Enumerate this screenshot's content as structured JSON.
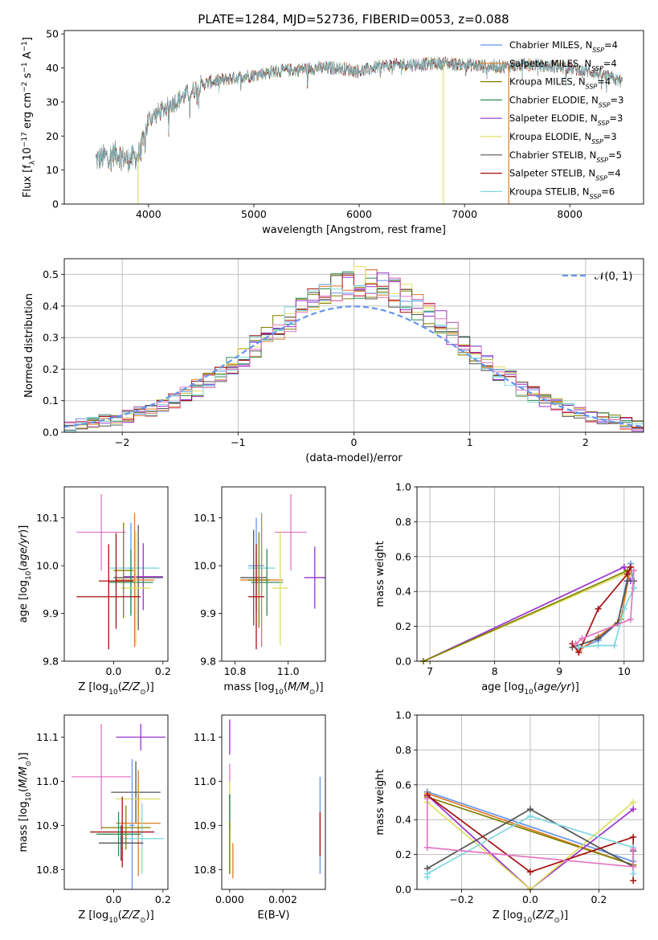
{
  "figure": {
    "title": "PLATE=1284, MJD=52736, FIBERID=0053, z=0.088"
  },
  "chart_data": [
    {
      "id": "spectrum",
      "type": "line",
      "title": "PLATE=1284, MJD=52736, FIBERID=0053, z=0.088",
      "xlabel": "wavelength [Angstrom, rest frame]",
      "ylabel": "Flux [f_λ 10^-17 erg cm^-2 s^-1 A^-1]",
      "xlim": [
        3200,
        8700
      ],
      "ylim": [
        0,
        51
      ],
      "xticks": [
        4000,
        5000,
        6000,
        7000,
        8000
      ],
      "yticks": [
        0,
        10,
        20,
        30,
        40,
        50
      ],
      "grid": false,
      "legend_position": "top-right",
      "continuum": {
        "x": [
          3500,
          3600,
          3700,
          3800,
          3900,
          3950,
          4000,
          4100,
          4200,
          4300,
          4400,
          4500,
          4600,
          4800,
          5000,
          5200,
          5400,
          5600,
          5800,
          6000,
          6200,
          6400,
          6600,
          6800,
          7000,
          7200,
          7400,
          7600,
          7800,
          8000,
          8200,
          8400,
          8500
        ],
        "y": [
          13,
          14,
          15,
          13,
          14,
          18,
          25,
          27,
          29,
          31,
          33,
          35,
          36,
          37,
          38,
          39,
          39.5,
          40,
          40,
          39,
          40.5,
          41,
          41,
          41.5,
          41,
          40.5,
          40.5,
          41,
          40.5,
          40,
          39,
          37,
          36
        ]
      },
      "series": [
        {
          "name": "Chabrier MILES, N_SSP=4",
          "color": "#6495ED"
        },
        {
          "name": "Salpeter MILES, N_SSP=4",
          "color": "#E07B28"
        },
        {
          "name": "Kroupa MILES, N_SSP=4",
          "color": "#808000"
        },
        {
          "name": "Chabrier ELODIE, N_SSP=3",
          "color": "#2E8B57"
        },
        {
          "name": "Salpeter ELODIE, N_SSP=3",
          "color": "#9932CC"
        },
        {
          "name": "Kroupa ELODIE, N_SSP=3",
          "color": "#DDE060"
        },
        {
          "name": "Chabrier STELIB, N_SSP=5",
          "color": "#555555"
        },
        {
          "name": "Salpeter STELIB, N_SSP=4",
          "color": "#A51010"
        },
        {
          "name": "Kroupa STELIB, N_SSP=6",
          "color": "#7FD8E0"
        }
      ],
      "spikes": [
        {
          "x": 3900,
          "color": "#DDE060"
        },
        {
          "x": 6800,
          "color": "#DDE060"
        },
        {
          "x": 7420,
          "color": "#E07B28"
        }
      ]
    },
    {
      "id": "residuals",
      "type": "histogram",
      "xlabel": "(data-model)/error",
      "ylabel": "Normed distribution",
      "xlim": [
        -2.5,
        2.5
      ],
      "ylim": [
        0,
        0.55
      ],
      "xticks": [
        -2,
        -1,
        0,
        1,
        2
      ],
      "yticks": [
        0.0,
        0.1,
        0.2,
        0.3,
        0.4,
        0.5
      ],
      "grid": true,
      "bin_width": 0.1,
      "reference_curve": {
        "name": "𝒩(0, 1)",
        "color": "#6495ED",
        "style": "dashed"
      },
      "legend_position": "top-right",
      "envelope": [
        0.018,
        0.024,
        0.03,
        0.036,
        0.042,
        0.05,
        0.06,
        0.072,
        0.085,
        0.1,
        0.118,
        0.14,
        0.16,
        0.185,
        0.21,
        0.24,
        0.27,
        0.3,
        0.33,
        0.36,
        0.39,
        0.42,
        0.44,
        0.46,
        0.47,
        0.475,
        0.47,
        0.46,
        0.445,
        0.425,
        0.4,
        0.375,
        0.345,
        0.31,
        0.28,
        0.25,
        0.22,
        0.19,
        0.165,
        0.14,
        0.12,
        0.1,
        0.085,
        0.072,
        0.06,
        0.05,
        0.042,
        0.035,
        0.028,
        0.022
      ]
    },
    {
      "id": "age-vs-Z",
      "type": "errorbar",
      "xlabel": "Z [log10(Z/Z⊙)]",
      "ylabel": "age [log10(age/yr)]",
      "xlim": [
        -0.2,
        0.22
      ],
      "ylim": [
        9.8,
        10.165
      ],
      "xticks": [
        0.0,
        0.2
      ],
      "xtick_labels": [
        "0.0",
        "0.2"
      ],
      "yticks": [
        9.8,
        9.9,
        10.0,
        10.1
      ],
      "grid": false,
      "points": [
        {
          "x": -0.05,
          "xerr": 0.1,
          "y": 10.07,
          "yerr": 0.08,
          "color": "#E377C2"
        },
        {
          "x": 0.07,
          "xerr": 0.01,
          "y": 9.995,
          "yerr": 0.095,
          "color": "#6495ED"
        },
        {
          "x": 0.085,
          "xerr": 0.1,
          "y": 9.995,
          "yerr": 0.06,
          "color": "#7FD8E0"
        },
        {
          "x": 0.1,
          "xerr": 0.1,
          "y": 9.975,
          "yerr": 0.11,
          "color": "#555555"
        },
        {
          "x": 0.12,
          "xerr": 0.08,
          "y": 9.977,
          "yerr": 0.07,
          "color": "#9932CC"
        },
        {
          "x": 0.085,
          "xerr": 0.08,
          "y": 9.97,
          "yerr": 0.14,
          "color": "#E07B28"
        },
        {
          "x": 0.07,
          "xerr": 0.09,
          "y": 9.965,
          "yerr": 0.07,
          "color": "#2E8B57"
        },
        {
          "x": 0.09,
          "xerr": 0.06,
          "y": 9.953,
          "yerr": 0.12,
          "color": "#DDE060"
        },
        {
          "x": 0.04,
          "xerr": 0.04,
          "y": 9.99,
          "yerr": 0.1,
          "color": "#808000"
        },
        {
          "x": 0.01,
          "xerr": 0.07,
          "y": 9.968,
          "yerr": 0.1,
          "color": "#A51010"
        },
        {
          "x": -0.02,
          "xerr": 0.13,
          "y": 9.935,
          "yerr": 0.11,
          "color": "#A51010"
        }
      ]
    },
    {
      "id": "age-vs-mass",
      "type": "errorbar",
      "xlabel": "mass [log10(M/M⊙)]",
      "xlim": [
        10.75,
        11.14
      ],
      "ylim": [
        9.8,
        10.165
      ],
      "xticks": [
        10.8,
        11.0
      ],
      "yticks": [
        9.8,
        9.9,
        10.0,
        10.1
      ],
      "grid": false,
      "points": [
        {
          "x": 11.01,
          "xerr": 0.06,
          "y": 10.07,
          "yerr": 0.08,
          "color": "#E377C2"
        },
        {
          "x": 10.88,
          "xerr": 0.03,
          "y": 10.0,
          "yerr": 0.1,
          "color": "#6495ED"
        },
        {
          "x": 10.9,
          "xerr": 0.05,
          "y": 9.995,
          "yerr": 0.05,
          "color": "#7FD8E0"
        },
        {
          "x": 10.87,
          "xerr": 0.05,
          "y": 9.975,
          "yerr": 0.1,
          "color": "#555555"
        },
        {
          "x": 11.1,
          "xerr": 0.04,
          "y": 9.975,
          "yerr": 0.065,
          "color": "#9932CC"
        },
        {
          "x": 10.9,
          "xerr": 0.08,
          "y": 9.97,
          "yerr": 0.14,
          "color": "#E07B28"
        },
        {
          "x": 10.92,
          "xerr": 0.06,
          "y": 9.965,
          "yerr": 0.07,
          "color": "#2E8B57"
        },
        {
          "x": 10.97,
          "xerr": 0.03,
          "y": 9.953,
          "yerr": 0.12,
          "color": "#DDE060"
        },
        {
          "x": 10.89,
          "xerr": 0.04,
          "y": 9.97,
          "yerr": 0.1,
          "color": "#808000"
        },
        {
          "x": 10.88,
          "xerr": 0.03,
          "y": 9.935,
          "yerr": 0.11,
          "color": "#A51010"
        }
      ]
    },
    {
      "id": "weight-vs-age",
      "type": "line",
      "xlabel": "age [log10(age/yr)]",
      "ylabel": "mass weight",
      "xlim": [
        6.8,
        10.3
      ],
      "ylim": [
        0,
        1.0
      ],
      "xticks": [
        7,
        8,
        9,
        10
      ],
      "yticks": [
        0.0,
        0.2,
        0.4,
        0.6,
        0.8,
        1.0
      ],
      "grid": true,
      "series": [
        {
          "color": "#9932CC",
          "x": [
            6.9,
            10.0,
            10.1
          ],
          "y": [
            0.0,
            0.54,
            0.46
          ]
        },
        {
          "color": "#DDE060",
          "x": [
            6.9,
            10.0,
            10.1
          ],
          "y": [
            0.0,
            0.5,
            0.5
          ]
        },
        {
          "color": "#808000",
          "x": [
            6.9,
            10.05
          ],
          "y": [
            0.0,
            0.52
          ]
        },
        {
          "color": "#6495ED",
          "x": [
            9.3,
            9.6,
            9.9,
            10.1,
            10.15
          ],
          "y": [
            0.07,
            0.12,
            0.22,
            0.56,
            0.42
          ]
        },
        {
          "color": "#E07B28",
          "x": [
            9.3,
            9.6,
            9.95,
            10.1
          ],
          "y": [
            0.06,
            0.14,
            0.24,
            0.54
          ]
        },
        {
          "color": "#555555",
          "x": [
            9.2,
            9.6,
            9.9,
            10.05,
            10.15
          ],
          "y": [
            0.08,
            0.13,
            0.22,
            0.46,
            0.46
          ]
        },
        {
          "color": "#A51010",
          "x": [
            9.2,
            9.3,
            9.6,
            10.05,
            10.1
          ],
          "y": [
            0.1,
            0.05,
            0.3,
            0.5,
            0.54
          ]
        },
        {
          "color": "#7FD8E0",
          "x": [
            9.3,
            9.6,
            9.85,
            10.0,
            10.15
          ],
          "y": [
            0.08,
            0.09,
            0.09,
            0.3,
            0.42
          ]
        },
        {
          "color": "#E377C2",
          "x": [
            9.25,
            9.35,
            10.1,
            10.15
          ],
          "y": [
            0.1,
            0.13,
            0.24,
            0.52
          ]
        }
      ]
    },
    {
      "id": "mass-vs-Z",
      "type": "errorbar",
      "xlabel": "Z [log10(Z/Z⊙)]",
      "ylabel": "mass [log10(M/M⊙)]",
      "xlim": [
        -0.2,
        0.22
      ],
      "ylim": [
        10.755,
        11.15
      ],
      "xticks": [
        0.0,
        0.2
      ],
      "xtick_labels": [
        "0.0",
        "0.2"
      ],
      "yticks": [
        10.8,
        10.9,
        11.0,
        11.1
      ],
      "grid": false,
      "points": [
        {
          "x": -0.05,
          "xerr": 0.12,
          "y": 11.01,
          "yerr": 0.12,
          "color": "#E377C2"
        },
        {
          "x": 0.11,
          "xerr": 0.1,
          "y": 11.1,
          "yerr": 0.03,
          "color": "#9932CC"
        },
        {
          "x": 0.09,
          "xerr": 0.1,
          "y": 10.975,
          "yerr": 0.07,
          "color": "#555555"
        },
        {
          "x": 0.1,
          "xerr": 0.09,
          "y": 10.96,
          "yerr": 0.04,
          "color": "#DDE060"
        },
        {
          "x": 0.075,
          "xerr": 0.01,
          "y": 10.9,
          "yerr": 0.15,
          "color": "#6495ED"
        },
        {
          "x": 0.1,
          "xerr": 0.09,
          "y": 10.905,
          "yerr": 0.12,
          "color": "#E07B28"
        },
        {
          "x": 0.115,
          "xerr": 0.09,
          "y": 10.87,
          "yerr": 0.08,
          "color": "#7FD8E0"
        },
        {
          "x": 0.05,
          "xerr": 0.1,
          "y": 10.895,
          "yerr": 0.05,
          "color": "#808000"
        },
        {
          "x": 0.035,
          "xerr": 0.13,
          "y": 10.885,
          "yerr": 0.08,
          "color": "#A51010"
        },
        {
          "x": 0.02,
          "xerr": 0.09,
          "y": 10.88,
          "yerr": 0.05,
          "color": "#2E8B57"
        },
        {
          "x": 0.03,
          "xerr": 0.09,
          "y": 10.86,
          "yerr": 0.04,
          "color": "#555555"
        }
      ]
    },
    {
      "id": "mass-vs-ebv",
      "type": "errorbar",
      "xlabel": "E(B-V)",
      "xlim": [
        -0.0003,
        0.0036
      ],
      "ylim": [
        10.755,
        11.15
      ],
      "xticks": [
        0.0,
        0.002
      ],
      "xtick_labels": [
        "0.000",
        "0.002"
      ],
      "yticks": [
        10.8,
        10.9,
        11.0,
        11.1
      ],
      "grid": false,
      "points": [
        {
          "x": 0.0,
          "y": 11.1,
          "yerr": 0.04,
          "color": "#9932CC"
        },
        {
          "x": 0.0,
          "y": 11.0,
          "yerr": 0.04,
          "color": "#E377C2"
        },
        {
          "x": 0.0,
          "y": 10.96,
          "yerr": 0.04,
          "color": "#DDE060"
        },
        {
          "x": 0.0,
          "y": 10.93,
          "yerr": 0.04,
          "color": "#555555"
        },
        {
          "x": 0.0,
          "y": 10.88,
          "yerr": 0.09,
          "color": "#2E8B57"
        },
        {
          "x": 0.0,
          "y": 10.85,
          "yerr": 0.06,
          "color": "#808000"
        },
        {
          "x": 0.00012,
          "y": 10.82,
          "yerr": 0.04,
          "color": "#E07B28"
        },
        {
          "x": 0.0034,
          "y": 10.9,
          "yerr": 0.11,
          "color": "#6495ED"
        },
        {
          "x": 0.0034,
          "y": 10.88,
          "yerr": 0.05,
          "color": "#A51010"
        }
      ]
    },
    {
      "id": "weight-vs-Z",
      "type": "line",
      "xlabel": "Z [log10(Z/Z⊙)]",
      "ylabel": "mass weight",
      "xlim": [
        -0.33,
        0.33
      ],
      "ylim": [
        0,
        1.0
      ],
      "xticks": [
        -0.2,
        0.0,
        0.2
      ],
      "yticks": [
        0.0,
        0.2,
        0.4,
        0.6,
        0.8,
        1.0
      ],
      "grid": true,
      "series": [
        {
          "color": "#6495ED",
          "x": [
            -0.3,
            0.3
          ],
          "y": [
            0.56,
            0.16
          ]
        },
        {
          "color": "#E07B28",
          "x": [
            -0.3,
            0.3
          ],
          "y": [
            0.55,
            0.14
          ]
        },
        {
          "color": "#808000",
          "x": [
            -0.3,
            0.3
          ],
          "y": [
            0.53,
            0.14
          ]
        },
        {
          "color": "#9932CC",
          "x": [
            -0.3,
            0.0,
            0.3
          ],
          "y": [
            0.54,
            0.0,
            0.46
          ]
        },
        {
          "color": "#DDE060",
          "x": [
            -0.3,
            0.0,
            0.3
          ],
          "y": [
            0.5,
            0.0,
            0.5
          ]
        },
        {
          "color": "#555555",
          "x": [
            -0.3,
            0.0,
            0.3,
            0.3
          ],
          "y": [
            0.12,
            0.46,
            0.13,
            0.22
          ]
        },
        {
          "color": "#A51010",
          "x": [
            -0.3,
            0.0,
            0.3,
            0.3
          ],
          "y": [
            0.54,
            0.1,
            0.3,
            0.05
          ]
        },
        {
          "color": "#7FD8E0",
          "x": [
            -0.3,
            -0.3,
            0.0,
            0.3,
            0.3
          ],
          "y": [
            0.07,
            0.09,
            0.42,
            0.24,
            0.09
          ]
        },
        {
          "color": "#E377C2",
          "x": [
            -0.3,
            -0.3,
            0.3,
            0.3
          ],
          "y": [
            0.52,
            0.24,
            0.13,
            0.23
          ]
        }
      ]
    }
  ]
}
